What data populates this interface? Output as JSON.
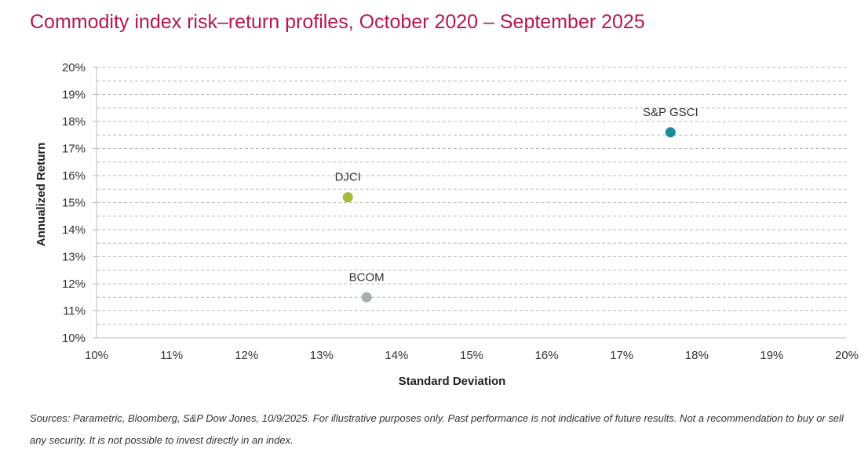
{
  "chart_data": {
    "type": "scatter",
    "title": "Commodity index risk–return profiles, October 2020 – September 2025",
    "xlabel": "Standard Deviation",
    "ylabel": "Annualized Return",
    "xlim": [
      10,
      20
    ],
    "ylim": [
      10,
      20
    ],
    "x_ticks": [
      "10%",
      "11%",
      "12%",
      "13%",
      "14%",
      "15%",
      "16%",
      "17%",
      "18%",
      "19%",
      "20%"
    ],
    "y_ticks": [
      "20%",
      "19%",
      "18%",
      "17%",
      "16%",
      "15%",
      "14%",
      "13%",
      "12%",
      "11%",
      "10%"
    ],
    "grid": true,
    "points": [
      {
        "label": "S&P GSCI",
        "x": 17.65,
        "y": 17.6,
        "color": "#1d8a9a"
      },
      {
        "label": "DJCI",
        "x": 13.35,
        "y": 15.2,
        "color": "#a8b83a"
      },
      {
        "label": "BCOM",
        "x": 13.6,
        "y": 11.5,
        "color": "#a2adb8"
      }
    ]
  },
  "footer": {
    "source": "Sources: Parametric, Bloomberg, S&P Dow Jones, 10/9/2025. For illustrative purposes only. Past performance is not indicative of future results. Not a recommendation to buy or sell any security. It is not possible to invest directly in an index."
  }
}
